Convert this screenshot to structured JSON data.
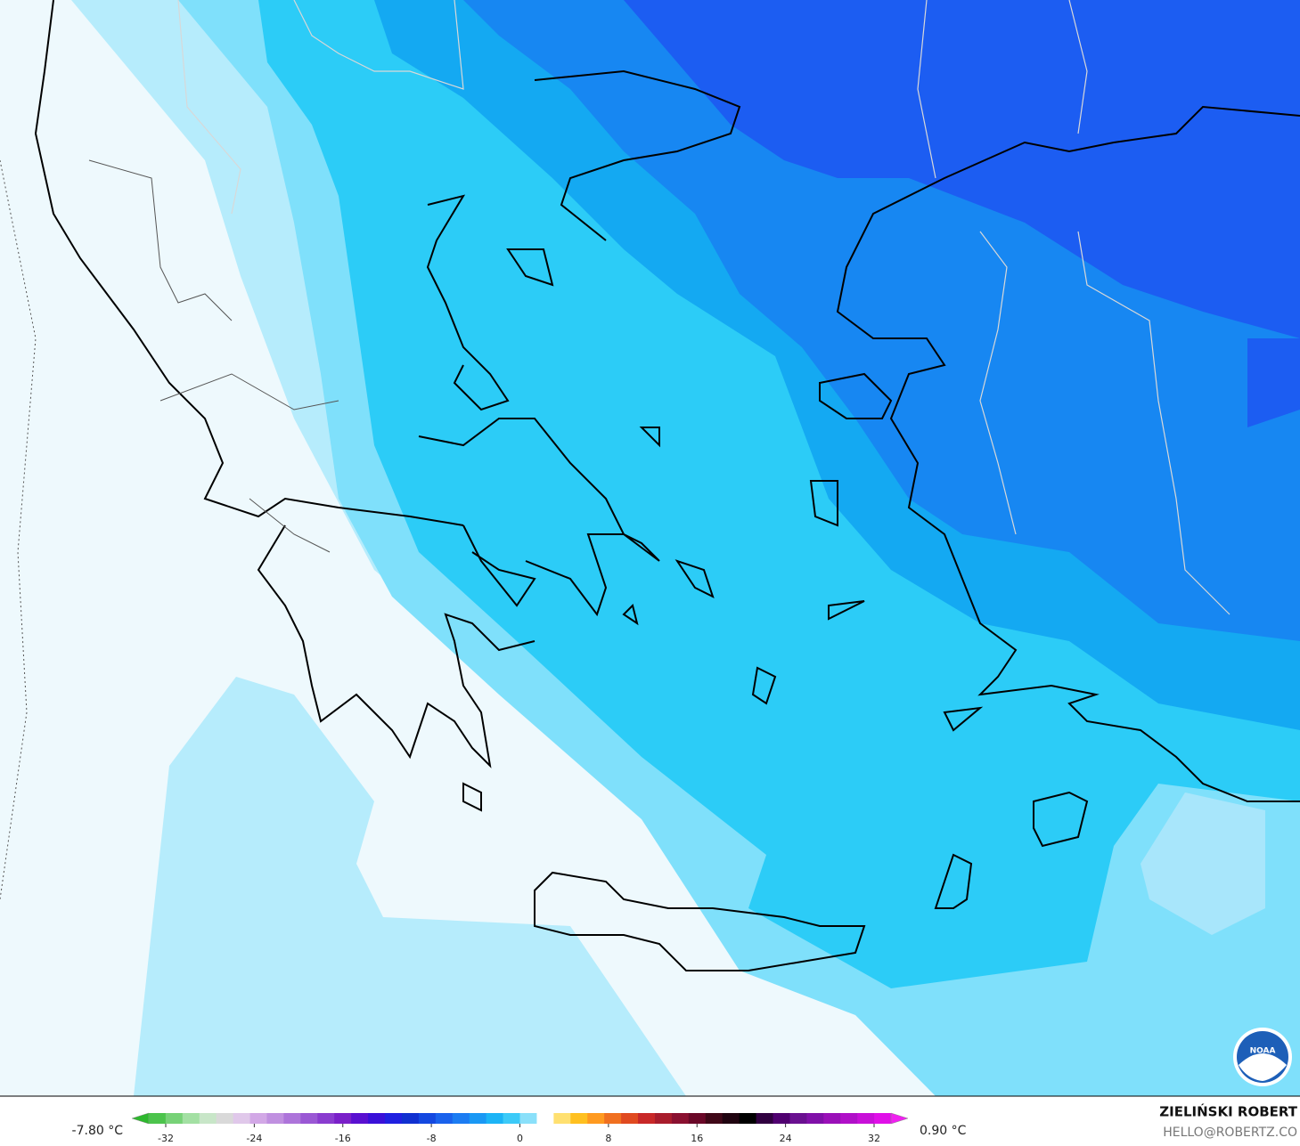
{
  "legend": {
    "min_label": "-7.80 °C",
    "max_label": "0.90 °C",
    "ticks": [
      -32,
      -24,
      -16,
      -8,
      0,
      8,
      16,
      24,
      32
    ]
  },
  "credit": {
    "name": "ZIELIŃSKI ROBERT",
    "email": "HELLO@ROBERTZ.CO"
  },
  "logo": "NOAA"
}
